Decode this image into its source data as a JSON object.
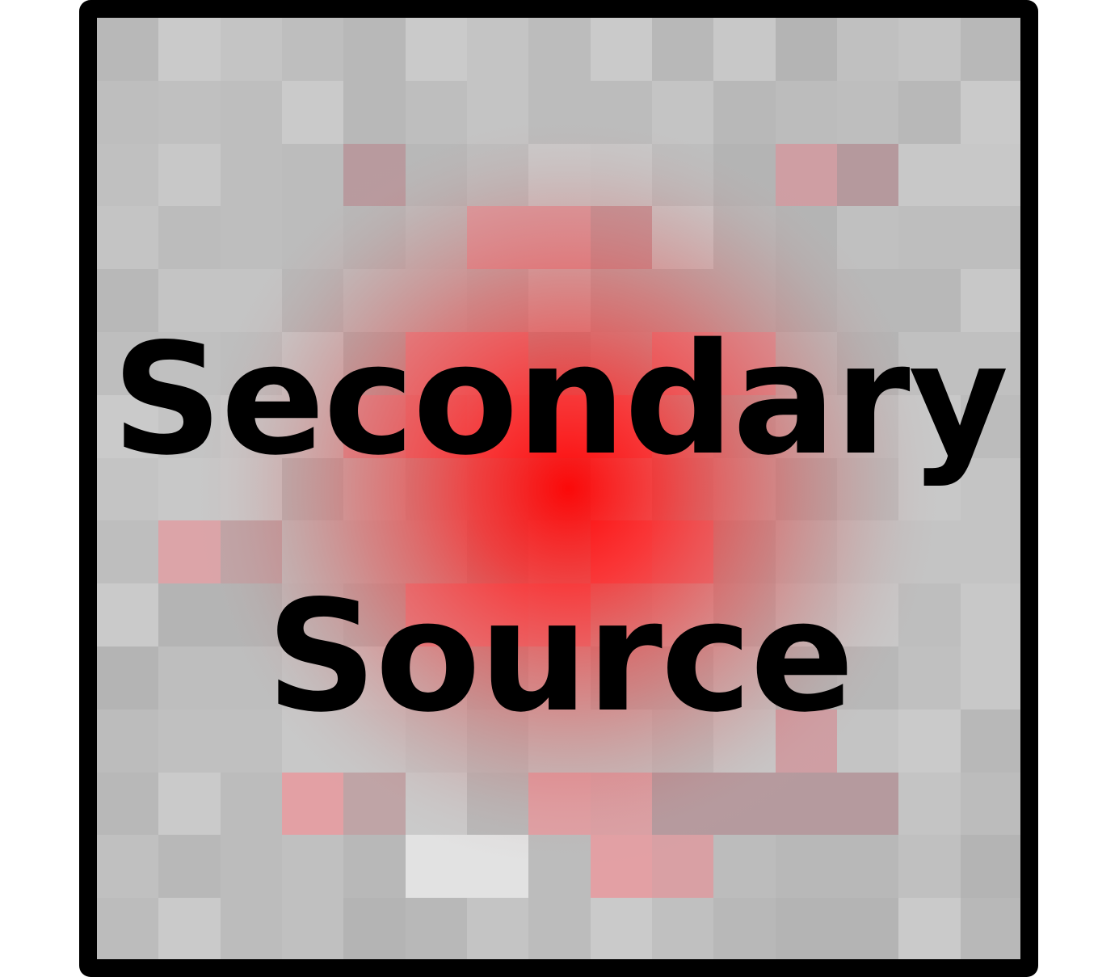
{
  "title": {
    "line1": "Secondary",
    "line2": "Source"
  },
  "colors": {
    "border": "#000000",
    "base_block": "#c4c4c4",
    "glow_center": "#ff0000",
    "text": "#000000"
  }
}
